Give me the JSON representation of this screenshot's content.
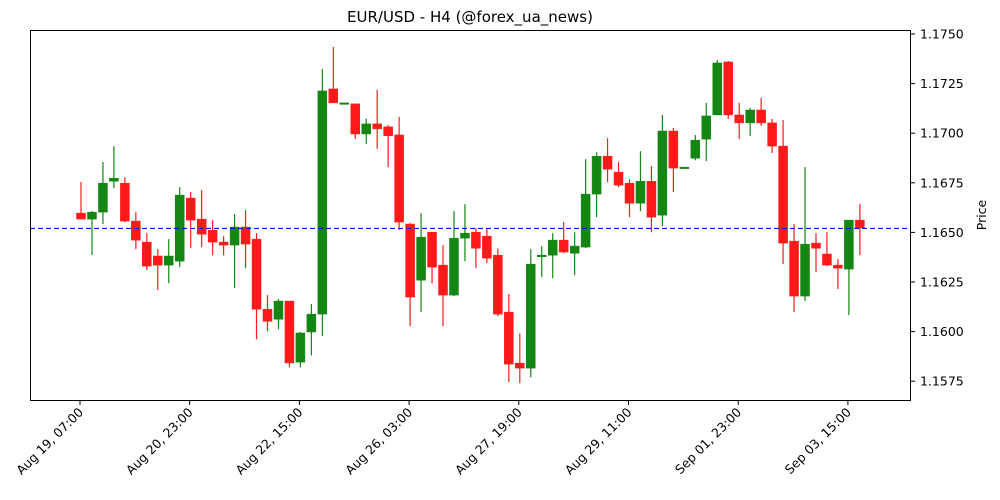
{
  "chart_data": {
    "type": "candlestick",
    "title": "EUR/USD - H4 (@forex_ua_news)",
    "xlabel": "",
    "ylabel": "Price",
    "ylim": [
      1.1566,
      1.1758
    ],
    "y_ticks": [
      "1.1575",
      "1.1600",
      "1.1625",
      "1.1650",
      "1.1675",
      "1.1700",
      "1.1725",
      "1.1750"
    ],
    "x_ticks": [
      {
        "label": "Aug 19, 07:00",
        "index": 0
      },
      {
        "label": "Aug 20, 23:00",
        "index": 10
      },
      {
        "label": "Aug 22, 15:00",
        "index": 20
      },
      {
        "label": "Aug 26, 03:00",
        "index": 30
      },
      {
        "label": "Aug 27, 19:00",
        "index": 40
      },
      {
        "label": "Aug 29, 11:00",
        "index": 50
      },
      {
        "label": "Sep 01, 23:00",
        "index": 60
      },
      {
        "label": "Sep 03, 15:00",
        "index": 70
      }
    ],
    "reference_line": {
      "value": 1.1652,
      "color": "#0000ff",
      "style": "dashed"
    },
    "up_color": "#138613",
    "down_color": "#ff1a1a",
    "grid": false,
    "candles": [
      {
        "o": 1.16597,
        "h": 1.16754,
        "l": 1.16577,
        "c": 1.16567
      },
      {
        "o": 1.16567,
        "h": 1.16607,
        "l": 1.16386,
        "c": 1.16602
      },
      {
        "o": 1.16602,
        "h": 1.16855,
        "l": 1.16542,
        "c": 1.16748
      },
      {
        "o": 1.16758,
        "h": 1.16935,
        "l": 1.16723,
        "c": 1.16773
      },
      {
        "o": 1.16748,
        "h": 1.16778,
        "l": 1.16551,
        "c": 1.16557
      },
      {
        "o": 1.16557,
        "h": 1.16602,
        "l": 1.16416,
        "c": 1.16461
      },
      {
        "o": 1.16451,
        "h": 1.16496,
        "l": 1.1631,
        "c": 1.1633
      },
      {
        "o": 1.16381,
        "h": 1.16416,
        "l": 1.16209,
        "c": 1.16335
      },
      {
        "o": 1.16335,
        "h": 1.16466,
        "l": 1.16244,
        "c": 1.16381
      },
      {
        "o": 1.16355,
        "h": 1.16728,
        "l": 1.16325,
        "c": 1.16688
      },
      {
        "o": 1.16673,
        "h": 1.16703,
        "l": 1.16421,
        "c": 1.16562
      },
      {
        "o": 1.16567,
        "h": 1.16713,
        "l": 1.16426,
        "c": 1.16491
      },
      {
        "o": 1.16511,
        "h": 1.16562,
        "l": 1.16385,
        "c": 1.16451
      },
      {
        "o": 1.16451,
        "h": 1.16481,
        "l": 1.16385,
        "c": 1.16436
      },
      {
        "o": 1.16436,
        "h": 1.16592,
        "l": 1.16219,
        "c": 1.16527
      },
      {
        "o": 1.16527,
        "h": 1.16612,
        "l": 1.1632,
        "c": 1.16441
      },
      {
        "o": 1.16466,
        "h": 1.16496,
        "l": 1.15961,
        "c": 1.16113
      },
      {
        "o": 1.16113,
        "h": 1.16184,
        "l": 1.16002,
        "c": 1.16052
      },
      {
        "o": 1.16062,
        "h": 1.16164,
        "l": 1.16012,
        "c": 1.16154
      },
      {
        "o": 1.16154,
        "h": 1.16154,
        "l": 1.1582,
        "c": 1.15842
      },
      {
        "o": 1.15846,
        "h": 1.15998,
        "l": 1.1582,
        "c": 1.15993
      },
      {
        "o": 1.15998,
        "h": 1.16139,
        "l": 1.1588,
        "c": 1.16088
      },
      {
        "o": 1.16088,
        "h": 1.17324,
        "l": 1.15977,
        "c": 1.17213
      },
      {
        "o": 1.17223,
        "h": 1.17435,
        "l": 1.17153,
        "c": 1.17153
      },
      {
        "o": 1.17153,
        "h": 1.17153,
        "l": 1.17153,
        "c": 1.17153
      },
      {
        "o": 1.17148,
        "h": 1.17148,
        "l": 1.16971,
        "c": 1.16996
      },
      {
        "o": 1.16996,
        "h": 1.17073,
        "l": 1.16946,
        "c": 1.17047
      },
      {
        "o": 1.17047,
        "h": 1.17218,
        "l": 1.16921,
        "c": 1.17022
      },
      {
        "o": 1.17032,
        "h": 1.17042,
        "l": 1.16829,
        "c": 1.16987
      },
      {
        "o": 1.16991,
        "h": 1.17082,
        "l": 1.16512,
        "c": 1.16552
      },
      {
        "o": 1.16542,
        "h": 1.16547,
        "l": 1.16027,
        "c": 1.16174
      },
      {
        "o": 1.16259,
        "h": 1.16597,
        "l": 1.16098,
        "c": 1.16476
      },
      {
        "o": 1.16501,
        "h": 1.16496,
        "l": 1.16244,
        "c": 1.16325
      },
      {
        "o": 1.16335,
        "h": 1.16436,
        "l": 1.16027,
        "c": 1.16184
      },
      {
        "o": 1.16184,
        "h": 1.16607,
        "l": 1.16179,
        "c": 1.16471
      },
      {
        "o": 1.16471,
        "h": 1.16642,
        "l": 1.16355,
        "c": 1.16496
      },
      {
        "o": 1.16501,
        "h": 1.16521,
        "l": 1.1632,
        "c": 1.1642
      },
      {
        "o": 1.16481,
        "h": 1.16521,
        "l": 1.16345,
        "c": 1.1637
      },
      {
        "o": 1.16385,
        "h": 1.1642,
        "l": 1.16078,
        "c": 1.16088
      },
      {
        "o": 1.16098,
        "h": 1.16189,
        "l": 1.15745,
        "c": 1.15836
      },
      {
        "o": 1.15841,
        "h": 1.1599,
        "l": 1.1574,
        "c": 1.15816
      },
      {
        "o": 1.15816,
        "h": 1.16416,
        "l": 1.1577,
        "c": 1.1634
      },
      {
        "o": 1.16385,
        "h": 1.16431,
        "l": 1.16275,
        "c": 1.16385
      },
      {
        "o": 1.16385,
        "h": 1.16496,
        "l": 1.16269,
        "c": 1.16461
      },
      {
        "o": 1.16461,
        "h": 1.16552,
        "l": 1.16395,
        "c": 1.16401
      },
      {
        "o": 1.16395,
        "h": 1.16501,
        "l": 1.16285,
        "c": 1.16431
      },
      {
        "o": 1.16426,
        "h": 1.16869,
        "l": 1.16421,
        "c": 1.16693
      },
      {
        "o": 1.16693,
        "h": 1.16904,
        "l": 1.16577,
        "c": 1.16884
      },
      {
        "o": 1.16884,
        "h": 1.16975,
        "l": 1.16753,
        "c": 1.16819
      },
      {
        "o": 1.16804,
        "h": 1.16854,
        "l": 1.16728,
        "c": 1.16738
      },
      {
        "o": 1.16748,
        "h": 1.16768,
        "l": 1.16577,
        "c": 1.16647
      },
      {
        "o": 1.16647,
        "h": 1.16909,
        "l": 1.16607,
        "c": 1.16758
      },
      {
        "o": 1.16758,
        "h": 1.16834,
        "l": 1.16501,
        "c": 1.16577
      },
      {
        "o": 1.16587,
        "h": 1.17092,
        "l": 1.16532,
        "c": 1.17011
      },
      {
        "o": 1.17011,
        "h": 1.17027,
        "l": 1.16703,
        "c": 1.16824
      },
      {
        "o": 1.16829,
        "h": 1.16829,
        "l": 1.16829,
        "c": 1.16829
      },
      {
        "o": 1.16874,
        "h": 1.16991,
        "l": 1.16864,
        "c": 1.16965
      },
      {
        "o": 1.1697,
        "h": 1.17153,
        "l": 1.16859,
        "c": 1.17087
      },
      {
        "o": 1.17092,
        "h": 1.17369,
        "l": 1.17092,
        "c": 1.17354
      },
      {
        "o": 1.17359,
        "h": 1.17364,
        "l": 1.17072,
        "c": 1.17092
      },
      {
        "o": 1.17092,
        "h": 1.17153,
        "l": 1.16971,
        "c": 1.17052
      },
      {
        "o": 1.17052,
        "h": 1.17127,
        "l": 1.16986,
        "c": 1.17117
      },
      {
        "o": 1.17117,
        "h": 1.17178,
        "l": 1.17037,
        "c": 1.17052
      },
      {
        "o": 1.17052,
        "h": 1.17072,
        "l": 1.169,
        "c": 1.16935
      },
      {
        "o": 1.16935,
        "h": 1.17067,
        "l": 1.1634,
        "c": 1.16446
      },
      {
        "o": 1.16456,
        "h": 1.16542,
        "l": 1.16098,
        "c": 1.16179
      },
      {
        "o": 1.16179,
        "h": 1.16829,
        "l": 1.16154,
        "c": 1.16441
      },
      {
        "o": 1.16446,
        "h": 1.16496,
        "l": 1.163,
        "c": 1.1642
      },
      {
        "o": 1.16391,
        "h": 1.16501,
        "l": 1.1633,
        "c": 1.16335
      },
      {
        "o": 1.16335,
        "h": 1.16365,
        "l": 1.16214,
        "c": 1.1632
      },
      {
        "o": 1.16315,
        "h": 1.16537,
        "l": 1.16083,
        "c": 1.16562
      },
      {
        "o": 1.16562,
        "h": 1.16643,
        "l": 1.16386,
        "c": 1.16522
      }
    ]
  }
}
